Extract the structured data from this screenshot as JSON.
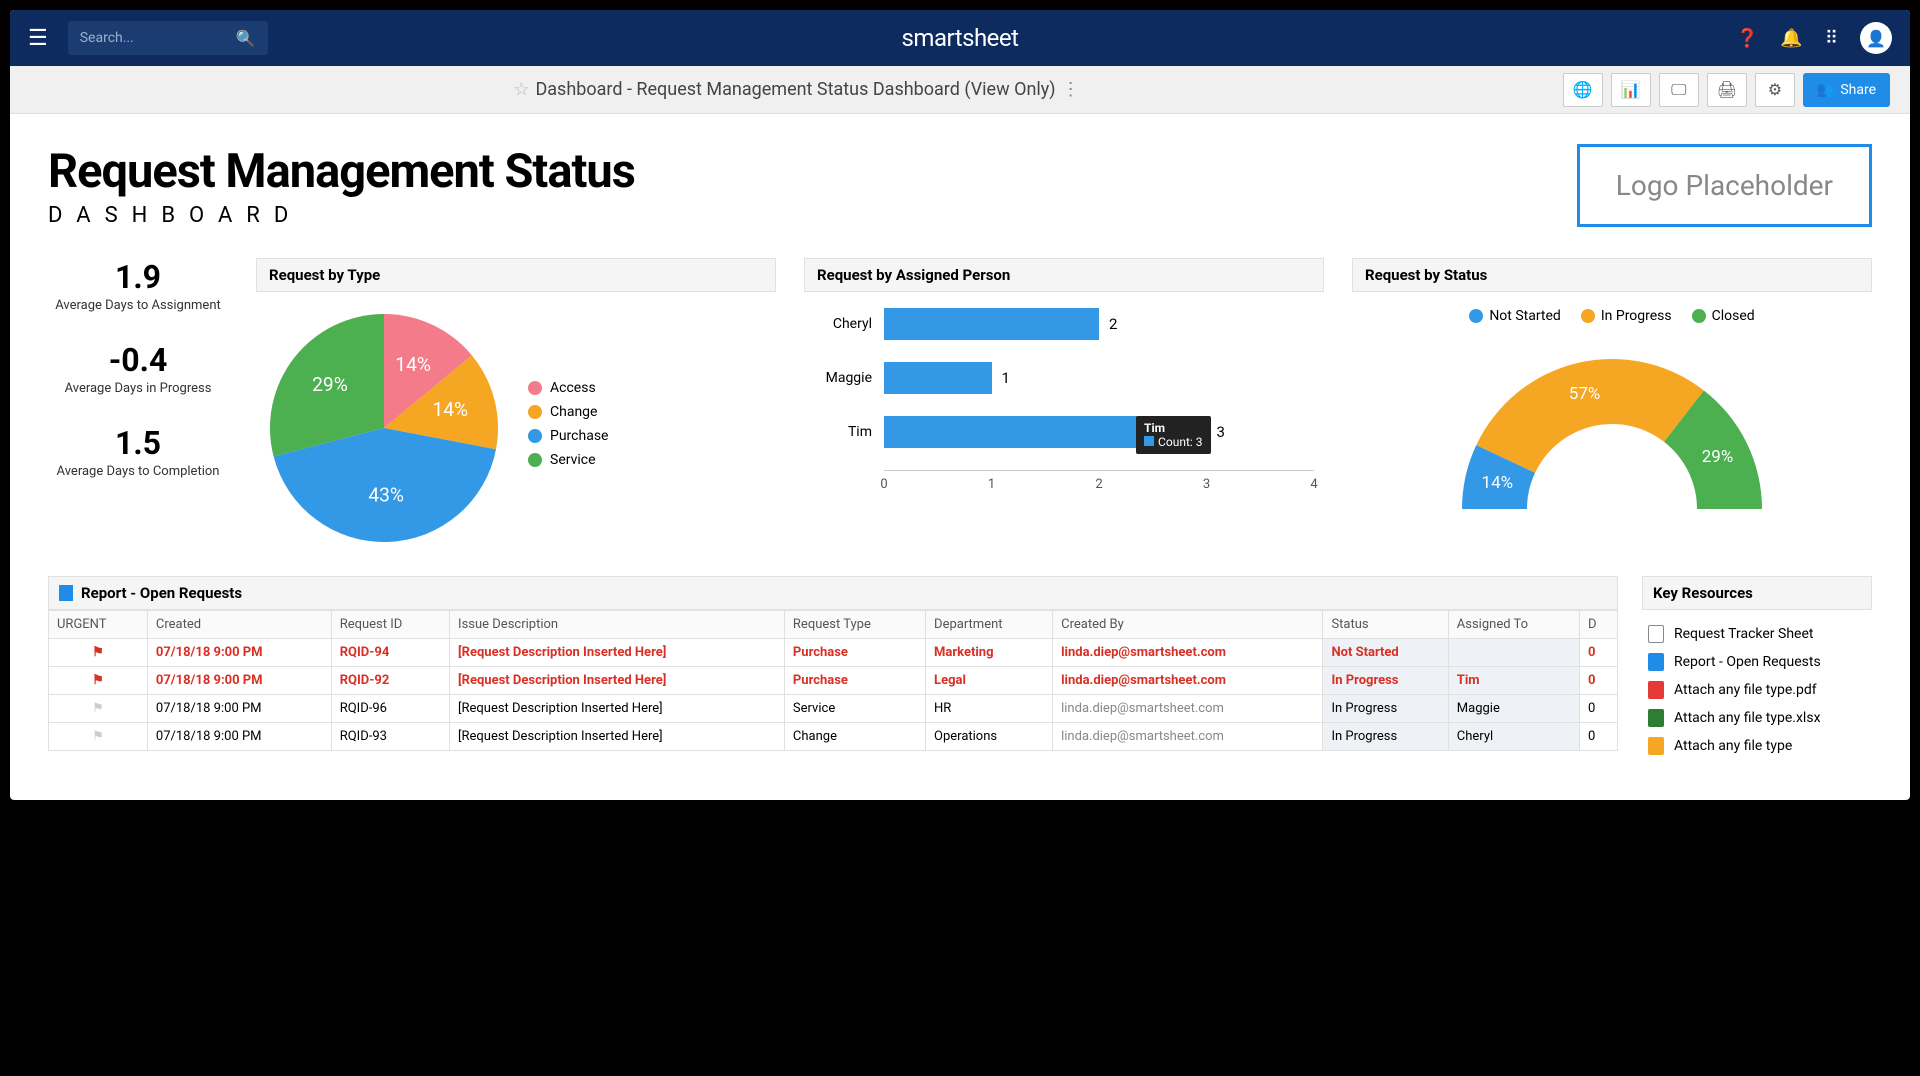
{
  "topbar": {
    "search_placeholder": "Search...",
    "brand": "smartsheet"
  },
  "toolbar": {
    "title": "Dashboard - Request Management Status Dashboard (View Only)",
    "share": "Share"
  },
  "header": {
    "title": "Request Management Status",
    "subtitle": "DASHBOARD",
    "logo": "Logo Placeholder"
  },
  "metrics": [
    {
      "value": "1.9",
      "label": "Average Days to Assignment"
    },
    {
      "value": "-0.4",
      "label": "Average Days in Progress"
    },
    {
      "value": "1.5",
      "label": "Average Days to Completion"
    }
  ],
  "pie": {
    "title": "Request by Type",
    "slices": [
      {
        "label": "Access",
        "pct": 14,
        "color": "#f47c8a"
      },
      {
        "label": "Change",
        "pct": 14,
        "color": "#f5a623"
      },
      {
        "label": "Purchase",
        "pct": 43,
        "color": "#3399e6"
      },
      {
        "label": "Service",
        "pct": 29,
        "color": "#4caf50"
      }
    ]
  },
  "bars": {
    "title": "Request by Assigned Person",
    "max": 4,
    "ticks": [
      0,
      1,
      2,
      3,
      4
    ],
    "rows": [
      {
        "label": "Cheryl",
        "value": 2
      },
      {
        "label": "Maggie",
        "value": 1
      },
      {
        "label": "Tim",
        "value": 3,
        "tooltip": {
          "name": "Tim",
          "count": "Count: 3"
        }
      }
    ],
    "bar_color": "#3399e6"
  },
  "donut": {
    "title": "Request by Status",
    "slices": [
      {
        "label": "Not Started",
        "pct": 14,
        "color": "#3399e6"
      },
      {
        "label": "In Progress",
        "pct": 57,
        "color": "#f5a623"
      },
      {
        "label": "Closed",
        "pct": 29,
        "color": "#4caf50"
      }
    ]
  },
  "report": {
    "title": "Report - Open Requests",
    "columns": [
      "URGENT",
      "Created",
      "Request ID",
      "Issue Description",
      "Request Type",
      "Department",
      "Created By",
      "Status",
      "Assigned To",
      "D"
    ],
    "rows": [
      {
        "urgent": true,
        "created": "07/18/18 9:00 PM",
        "id": "RQID-94",
        "desc": "[Request Description Inserted Here]",
        "type": "Purchase",
        "dept": "Marketing",
        "by": "linda.diep@smartsheet.com",
        "status": "Not Started",
        "assigned": "",
        "assigned_hl": true,
        "d": "0"
      },
      {
        "urgent": true,
        "created": "07/18/18 9:00 PM",
        "id": "RQID-92",
        "desc": "[Request Description Inserted Here]",
        "type": "Purchase",
        "dept": "Legal",
        "by": "linda.diep@smartsheet.com",
        "status": "In Progress",
        "assigned": "Tim",
        "d": "0"
      },
      {
        "urgent": false,
        "created": "07/18/18 9:00 PM",
        "id": "RQID-96",
        "desc": "[Request Description Inserted Here]",
        "type": "Service",
        "dept": "HR",
        "by": "linda.diep@smartsheet.com",
        "status": "In Progress",
        "assigned": "Maggie",
        "d": "0"
      },
      {
        "urgent": false,
        "created": "07/18/18 9:00 PM",
        "id": "RQID-93",
        "desc": "[Request Description Inserted Here]",
        "type": "Change",
        "dept": "Operations",
        "by": "linda.diep@smartsheet.com",
        "status": "In Progress",
        "assigned": "Cheryl",
        "d": "0"
      }
    ]
  },
  "resources": {
    "title": "Key Resources",
    "items": [
      {
        "label": "Request Tracker Sheet",
        "icon_bg": "#fff",
        "icon_border": "#888"
      },
      {
        "label": "Report - Open Requests",
        "icon_bg": "#1f8ce8"
      },
      {
        "label": "Attach any file type.pdf",
        "icon_bg": "#e53935"
      },
      {
        "label": "Attach any file type.xlsx",
        "icon_bg": "#2e7d32"
      },
      {
        "label": "Attach any file type",
        "icon_bg": "#f5a623"
      }
    ]
  }
}
